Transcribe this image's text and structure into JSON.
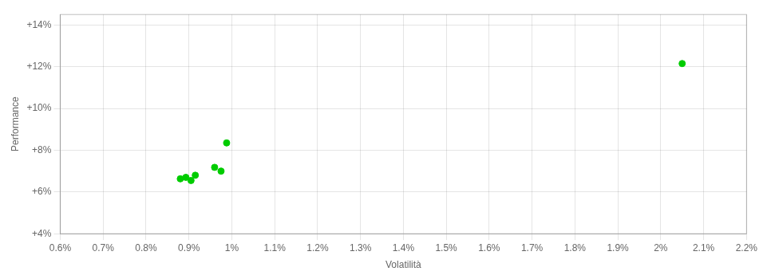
{
  "chart_data": {
    "type": "scatter",
    "xlabel": "Volatilità",
    "ylabel": "Performance",
    "x": [
      0.0088,
      0.00893,
      0.00905,
      0.00915,
      0.0096,
      0.00975,
      0.00988,
      0.0205
    ],
    "values": [
      0.0663,
      0.067,
      0.0655,
      0.068,
      0.0718,
      0.07,
      0.0835,
      0.1215
    ],
    "color": "#00cc00",
    "xlim": [
      0.006,
      0.022
    ],
    "ylim": [
      0.04,
      0.145
    ],
    "xticks": [
      {
        "value": 0.006,
        "label": "0.6%"
      },
      {
        "value": 0.007,
        "label": "0.7%"
      },
      {
        "value": 0.008,
        "label": "0.8%"
      },
      {
        "value": 0.009,
        "label": "0.9%"
      },
      {
        "value": 0.01,
        "label": "1%"
      },
      {
        "value": 0.011,
        "label": "1.1%"
      },
      {
        "value": 0.012,
        "label": "1.2%"
      },
      {
        "value": 0.013,
        "label": "1.3%"
      },
      {
        "value": 0.014,
        "label": "1.4%"
      },
      {
        "value": 0.015,
        "label": "1.5%"
      },
      {
        "value": 0.016,
        "label": "1.6%"
      },
      {
        "value": 0.017,
        "label": "1.7%"
      },
      {
        "value": 0.018,
        "label": "1.8%"
      },
      {
        "value": 0.019,
        "label": "1.9%"
      },
      {
        "value": 0.02,
        "label": "2%"
      },
      {
        "value": 0.021,
        "label": "2.1%"
      },
      {
        "value": 0.022,
        "label": "2.2%"
      }
    ],
    "yticks": [
      {
        "value": 0.04,
        "label": "+4%"
      },
      {
        "value": 0.06,
        "label": "+6%"
      },
      {
        "value": 0.08,
        "label": "+8%"
      },
      {
        "value": 0.1,
        "label": "+10%"
      },
      {
        "value": 0.12,
        "label": "+12%"
      },
      {
        "value": 0.14,
        "label": "+14%"
      }
    ],
    "grid": true
  }
}
